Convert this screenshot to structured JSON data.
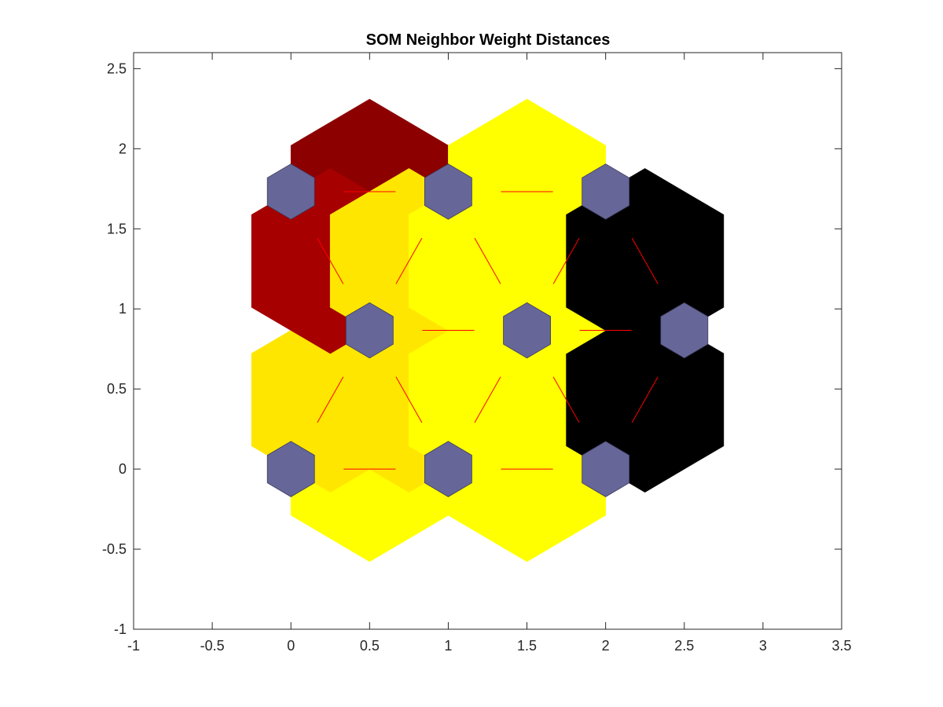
{
  "chart_data": {
    "type": "heatmap",
    "title": "SOM Neighbor Weight Distances",
    "xlabel": "",
    "ylabel": "",
    "xlim": [
      -1,
      3.5
    ],
    "ylim": [
      -1,
      2.6
    ],
    "xticks": [
      -1,
      -0.5,
      0,
      0.5,
      1,
      1.5,
      2,
      2.5,
      3,
      3.5
    ],
    "xtick_labels": [
      "-1",
      "-0.5",
      "0",
      "0.5",
      "1",
      "1.5",
      "2",
      "2.5",
      "3",
      "3.5"
    ],
    "yticks": [
      -1,
      -0.5,
      0,
      0.5,
      1,
      1.5,
      2,
      2.5
    ],
    "ytick_labels": [
      "-1",
      "-0.5",
      "0",
      "0.5",
      "1",
      "1.5",
      "2",
      "2.5"
    ],
    "grid": false,
    "neuron_color": "#666699",
    "link_line_color": "#ff0000",
    "neurons": [
      {
        "x": 0,
        "y": 0
      },
      {
        "x": 1,
        "y": 0
      },
      {
        "x": 2,
        "y": 0
      },
      {
        "x": 0.5,
        "y": 0.866
      },
      {
        "x": 1.5,
        "y": 0.866
      },
      {
        "x": 2.5,
        "y": 0.866
      },
      {
        "x": 0,
        "y": 1.732
      },
      {
        "x": 1,
        "y": 1.732
      },
      {
        "x": 2,
        "y": 1.732
      }
    ],
    "links": [
      {
        "from": 0,
        "to": 1,
        "color": "#ffff00"
      },
      {
        "from": 1,
        "to": 2,
        "color": "#ffff00"
      },
      {
        "from": 3,
        "to": 4,
        "color": "#ffe600"
      },
      {
        "from": 4,
        "to": 5,
        "color": "#000000"
      },
      {
        "from": 6,
        "to": 7,
        "color": "#8c0000"
      },
      {
        "from": 7,
        "to": 8,
        "color": "#ffff00"
      },
      {
        "from": 0,
        "to": 3,
        "color": "#ffe600"
      },
      {
        "from": 1,
        "to": 3,
        "color": "#ffe600"
      },
      {
        "from": 1,
        "to": 4,
        "color": "#ffff00"
      },
      {
        "from": 2,
        "to": 4,
        "color": "#ffff00"
      },
      {
        "from": 2,
        "to": 5,
        "color": "#000000"
      },
      {
        "from": 3,
        "to": 6,
        "color": "#a60000"
      },
      {
        "from": 3,
        "to": 7,
        "color": "#ffe600"
      },
      {
        "from": 4,
        "to": 7,
        "color": "#ffff00"
      },
      {
        "from": 4,
        "to": 8,
        "color": "#ffff00"
      },
      {
        "from": 5,
        "to": 8,
        "color": "#000000"
      }
    ]
  }
}
